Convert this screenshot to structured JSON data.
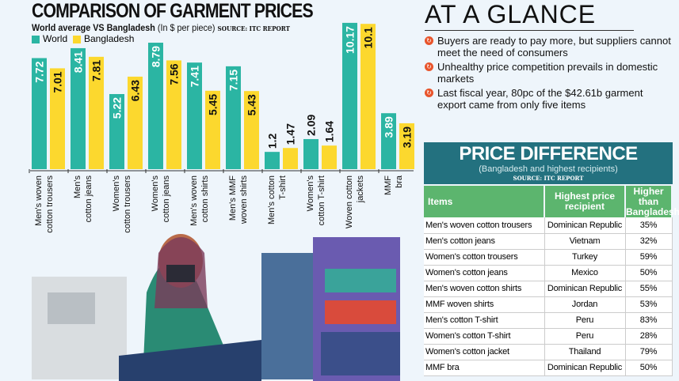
{
  "chart_data": {
    "type": "bar",
    "title": "COMPARISON OF GARMENT PRICES",
    "subtitle_bold": "World average VS Bangladesh",
    "subtitle": "(In $ per piece)",
    "source": "SOURCE: ITC REPORT",
    "categories": [
      [
        "Men's woven",
        "cotton trousers"
      ],
      [
        "Men's",
        "cotton jeans"
      ],
      [
        "Women's",
        "cotton trousers"
      ],
      [
        "Women's",
        "cotton jeans"
      ],
      [
        "Men's woven",
        "cotton shirts"
      ],
      [
        "Men's MMF",
        "woven shirts"
      ],
      [
        "Men's cotton",
        "T-shirt"
      ],
      [
        "Women's",
        "cotton T-shirt"
      ],
      [
        "Woven cotton",
        "jackets"
      ],
      [
        "MMF",
        "bra"
      ]
    ],
    "series": [
      {
        "name": "World",
        "color": "#2bb5a3",
        "values": [
          7.72,
          8.41,
          5.22,
          8.79,
          7.41,
          7.15,
          1.2,
          2.09,
          10.17,
          3.89
        ]
      },
      {
        "name": "Bangladesh",
        "color": "#fcd82e",
        "values": [
          7.01,
          7.81,
          6.43,
          7.56,
          5.45,
          5.43,
          1.47,
          1.64,
          10.1,
          3.19
        ]
      }
    ],
    "legend": "top-left",
    "grid": false
  },
  "glance": {
    "title": "AT A GLANCE",
    "bullets": [
      "Buyers are ready to pay more, but suppliers cannot meet the need of consumers",
      "Unhealthy price competition prevails in domestic markets",
      "Last fiscal year, 80pc of the $42.61b garment export came from only five items"
    ]
  },
  "table": {
    "title": "PRICE DIFFERENCE",
    "subtitle": "(Bangladesh and highest recipients)",
    "source": "SOURCE: ITC REPORT",
    "headers": [
      "Items",
      "Highest price recipient",
      "Higher than Bangladesh"
    ],
    "rows": [
      [
        "Men's woven cotton trousers",
        "Dominican Republic",
        "35%"
      ],
      [
        "Men's cotton jeans",
        "Vietnam",
        "32%"
      ],
      [
        "Women's cotton trousers",
        "Turkey",
        "59%"
      ],
      [
        "Women's cotton jeans",
        "Mexico",
        "50%"
      ],
      [
        "Men's woven cotton shirts",
        "Dominican Republic",
        "55%"
      ],
      [
        "MMF woven shirts",
        "Jordan",
        "53%"
      ],
      [
        "Men's cotton T-shirt",
        "Peru",
        "83%"
      ],
      [
        "Women's cotton T-shirt",
        "Peru",
        "28%"
      ],
      [
        "Women's cotton jacket",
        "Thailand",
        "79%"
      ],
      [
        "MMF bra",
        "Dominican Republic",
        "50%"
      ]
    ]
  },
  "colors": {
    "header": "#23717f",
    "table_head": "#5cb56e",
    "bullet": "#e8542b"
  }
}
